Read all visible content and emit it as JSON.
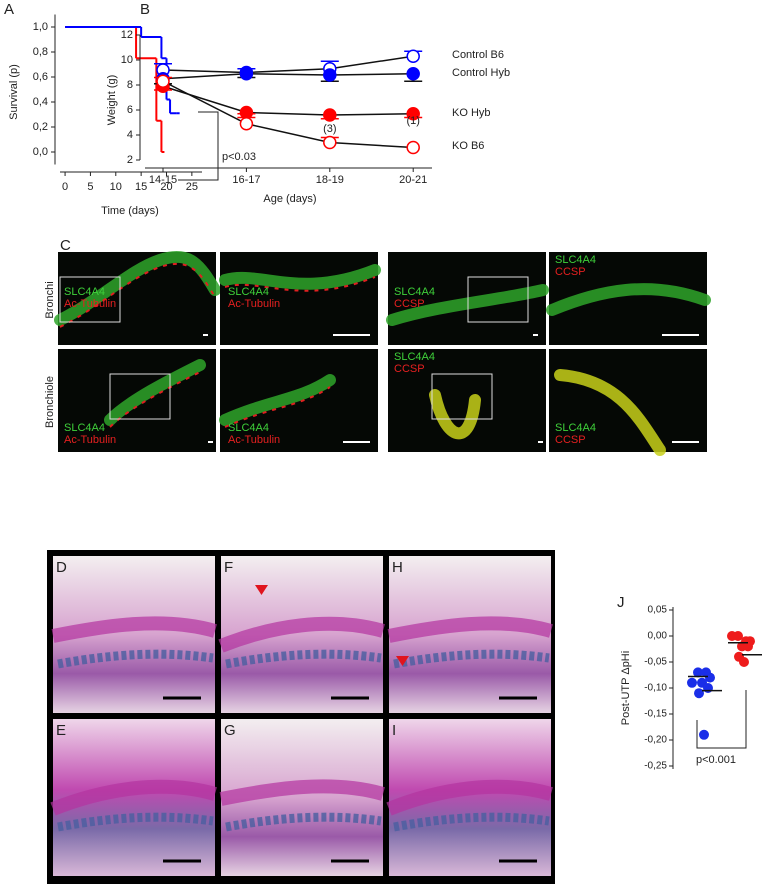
{
  "chart_data": [
    {
      "type": "step",
      "label": "A",
      "xlabel": "Time (days)",
      "ylabel": "Survival (p)",
      "xlim": [
        -1,
        27
      ],
      "xticks": [
        0,
        5,
        10,
        15,
        20,
        25
      ],
      "ylim": [
        -0.1,
        1.1
      ],
      "yticks": [
        {
          "value": 0,
          "label": "0,0"
        },
        {
          "value": 0.2,
          "label": "0,2"
        },
        {
          "value": 0.4,
          "label": "0,4"
        },
        {
          "value": 0.6,
          "label": "0,6"
        },
        {
          "value": 0.8,
          "label": "0,8"
        },
        {
          "value": 1,
          "label": "1,0"
        }
      ],
      "series": [
        {
          "color": "#ff0000",
          "x": [
            0,
            14,
            18,
            19
          ],
          "values": [
            1,
            0.75,
            0.25,
            0
          ]
        },
        {
          "color": "#0000ff",
          "x": [
            0,
            15,
            19,
            20,
            20.7,
            22
          ],
          "values": [
            1,
            0.92,
            0.75,
            0.42,
            0.31,
            0.31
          ]
        }
      ],
      "annotation": "p<0.03"
    },
    {
      "type": "line",
      "label": "B",
      "xlabel": "Age (days)",
      "ylabel": "Weight (g)",
      "categories": [
        "14-15",
        "16-17",
        "18-19",
        "20-21"
      ],
      "ylim": [
        2,
        12
      ],
      "yticks": [
        2,
        4,
        6,
        8,
        10,
        12
      ],
      "series": [
        {
          "name": "Control B6",
          "color": "#0000ff",
          "marker": "open",
          "values": [
            9.2,
            9.0,
            9.3,
            10.3
          ],
          "errors": [
            0.5,
            0.3,
            0.6,
            0.4
          ]
        },
        {
          "name": "Control Hyb",
          "color": "#0000ff",
          "marker": "filled",
          "values": [
            8.5,
            8.9,
            8.8,
            8.9
          ],
          "errors": [
            0.4,
            0.3,
            0.5,
            0.6
          ]
        },
        {
          "name": "KO Hyb",
          "color": "#ff0000",
          "marker": "filled",
          "values": [
            7.9,
            5.8,
            5.6,
            5.7
          ],
          "errors": [
            0.3,
            0.4,
            0.3,
            0.3
          ]
        },
        {
          "name": "KO B6",
          "color": "#ff0000",
          "marker": "open",
          "values": [
            8.3,
            4.9,
            3.4,
            3.0
          ],
          "errors": [
            0.3,
            0.8,
            0.4,
            0
          ]
        }
      ],
      "annotations": [
        "(3)",
        "(1)"
      ]
    },
    {
      "type": "dot",
      "label": "J",
      "ylabel": "Post-UTP ΔpHi",
      "ylim": [
        -0.25,
        0.05
      ],
      "yticks": [
        {
          "value": 0.05,
          "label": "0,05"
        },
        {
          "value": 0,
          "label": "0,00"
        },
        {
          "value": -0.05,
          "label": "-0,05"
        },
        {
          "value": -0.1,
          "label": "-0,10"
        },
        {
          "value": -0.15,
          "label": "-0,15"
        },
        {
          "value": -0.2,
          "label": "-0,20"
        },
        {
          "value": -0.25,
          "label": "-0,25"
        }
      ],
      "series": [
        {
          "color": "#1a2ee8",
          "values": [
            -0.09,
            -0.07,
            -0.07,
            -0.08,
            -0.09,
            -0.1,
            -0.11,
            -0.19
          ],
          "lines": [
            -0.078,
            -0.105
          ]
        },
        {
          "color": "#ee1c1c",
          "values": [
            0.0,
            0.0,
            -0.01,
            -0.01,
            -0.02,
            -0.02,
            -0.04,
            -0.05
          ],
          "lines": [
            -0.013,
            -0.036
          ]
        }
      ],
      "annotation": "p<0.001"
    }
  ],
  "immunofluorescence": {
    "label": "C",
    "rows": [
      "Bronchi",
      "Bronchiole"
    ],
    "images": [
      {
        "green": "SLC4A4",
        "red": "Ac-Tubulin"
      },
      {
        "green": "SLC4A4",
        "red": "Ac-Tubulin"
      },
      {
        "green": "SLC4A4",
        "red": "CCSP"
      },
      {
        "green": "SLC4A4",
        "red": "CCSP"
      },
      {
        "green": "SLC4A4",
        "red": "Ac-Tubulin"
      },
      {
        "green": "SLC4A4",
        "red": "Ac-Tubulin"
      },
      {
        "green": "SLC4A4",
        "red": "CCSP"
      },
      {
        "green": "SLC4A4",
        "red": "CCSP"
      }
    ]
  },
  "histology": {
    "panels": [
      "D",
      "F",
      "H",
      "E",
      "G",
      "I"
    ]
  }
}
